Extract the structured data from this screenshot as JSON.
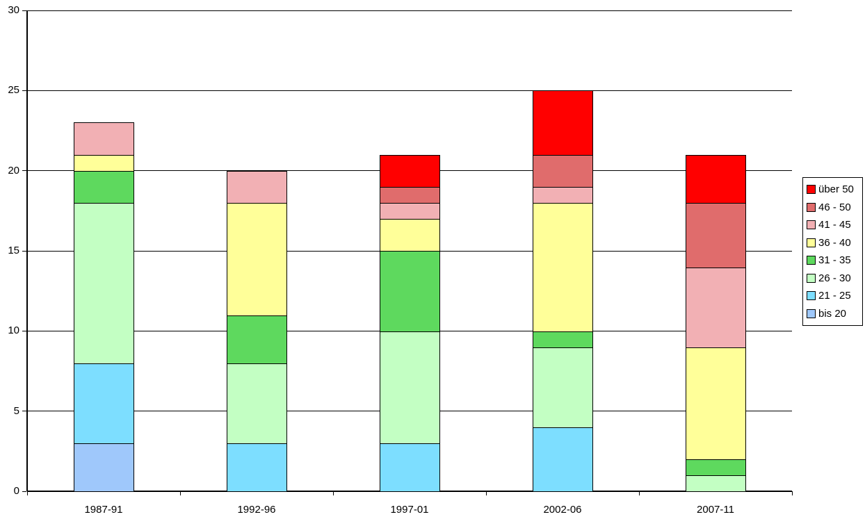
{
  "chart_data": {
    "type": "bar",
    "stacked": true,
    "title": "",
    "xlabel": "",
    "ylabel": "",
    "categories": [
      "1987-91",
      "1992-96",
      "1997-01",
      "2002-06",
      "2007-11"
    ],
    "series": [
      {
        "name": "bis 20",
        "color": "#9FC8FB",
        "values": [
          3,
          0,
          0,
          0,
          0
        ]
      },
      {
        "name": "21 - 25",
        "color": "#7DDEFF",
        "values": [
          5,
          3,
          3,
          4,
          0
        ]
      },
      {
        "name": "26 - 30",
        "color": "#C3FFC3",
        "values": [
          10,
          5,
          7,
          5,
          1
        ]
      },
      {
        "name": "31 - 35",
        "color": "#5ED95E",
        "values": [
          2,
          3,
          5,
          1,
          1
        ]
      },
      {
        "name": "36 - 40",
        "color": "#FFFF99",
        "values": [
          1,
          7,
          2,
          8,
          7
        ]
      },
      {
        "name": "41 - 45",
        "color": "#F2B0B4",
        "values": [
          2,
          2,
          1,
          1,
          5
        ]
      },
      {
        "name": "46 - 50",
        "color": "#E06C6C",
        "values": [
          0,
          0,
          1,
          2,
          4
        ]
      },
      {
        "name": "über 50",
        "color": "#FF0000",
        "values": [
          0,
          0,
          2,
          4,
          3
        ]
      }
    ],
    "totals": [
      23,
      20,
      21,
      25,
      21
    ],
    "y_ticks": [
      0,
      5,
      10,
      15,
      20,
      25,
      30
    ],
    "ylim": [
      0,
      30
    ],
    "grid": true,
    "gridline_color": "#000000",
    "background_color": "#FFFFFF",
    "legend_position": "right",
    "legend_order_top_to_bottom": [
      "über 50",
      "46 - 50",
      "41 - 45",
      "36 - 40",
      "31 - 35",
      "26 - 30",
      "21 - 25",
      "bis 20"
    ]
  }
}
